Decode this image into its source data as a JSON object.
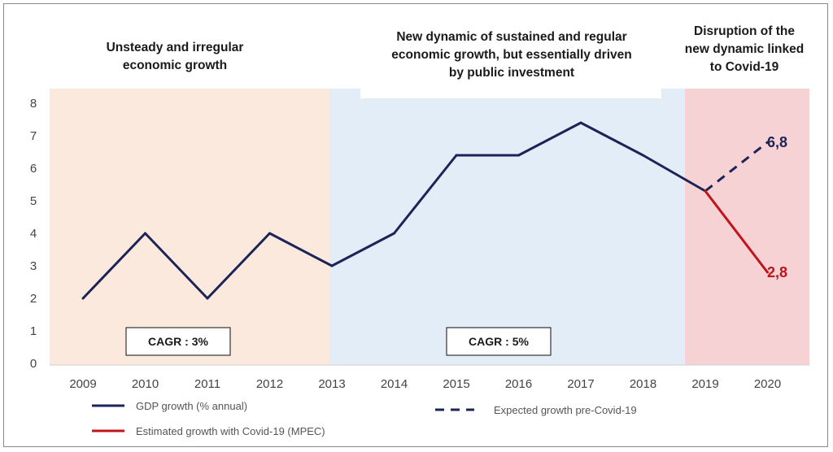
{
  "chart_data": {
    "type": "line",
    "x": [
      "2009",
      "2010",
      "2011",
      "2012",
      "2013",
      "2014",
      "2015",
      "2016",
      "2017",
      "2018",
      "2019",
      "2020"
    ],
    "ylim": [
      0,
      8
    ],
    "yticks": [
      "0",
      "1",
      "2",
      "3",
      "4",
      "5",
      "6",
      "7",
      "8"
    ],
    "series": [
      {
        "name": "GDP growth (% annual)",
        "color": "#1c2457",
        "style": "solid",
        "points": [
          {
            "x": "2009",
            "y": 2
          },
          {
            "x": "2010",
            "y": 4
          },
          {
            "x": "2011",
            "y": 2
          },
          {
            "x": "2012",
            "y": 4
          },
          {
            "x": "2013",
            "y": 3
          },
          {
            "x": "2014",
            "y": 4
          },
          {
            "x": "2015",
            "y": 6.4
          },
          {
            "x": "2016",
            "y": 6.4
          },
          {
            "x": "2017",
            "y": 7.4
          },
          {
            "x": "2018",
            "y": 6.4
          },
          {
            "x": "2019",
            "y": 5.3
          }
        ]
      },
      {
        "name": "Expected growth pre-Covid-19",
        "color": "#1c2457",
        "style": "dashed",
        "points": [
          {
            "x": "2019",
            "y": 5.3
          },
          {
            "x": "2020",
            "y": 6.8
          }
        ]
      },
      {
        "name": "Estimated growth with Covid-19 (MPEC)",
        "color": "#c0141c",
        "style": "solid",
        "points": [
          {
            "x": "2019",
            "y": 5.3
          },
          {
            "x": "2020",
            "y": 2.8
          }
        ]
      }
    ],
    "periods": [
      {
        "from": "2009",
        "to": "2013",
        "color": "#fbe9de",
        "annotation": [
          "Unsteady and irregular",
          "economic growth"
        ],
        "cagr": "CAGR : 3%"
      },
      {
        "from": "2013",
        "to": "2019",
        "color": "#e2edf8",
        "annotation": [
          "New dynamic of sustained and regular",
          "economic growth, but essentially driven",
          "by public investment"
        ],
        "cagr": "CAGR : 5%"
      },
      {
        "from": "2019",
        "to": "2020",
        "color": "#f6d2d5",
        "annotation": [
          "Disruption of the",
          "new dynamic linked",
          "to Covid-19"
        ],
        "cagr": ""
      }
    ],
    "end_labels": {
      "expected": "6,8",
      "estimated": "2,8"
    },
    "legend": {
      "gdp": "GDP growth (% annual)",
      "expected": "Expected growth pre-Covid-19",
      "estimated": "Estimated growth with Covid-19 (MPEC)"
    },
    "colors": {
      "navy": "#1c2457",
      "red": "#c0141c"
    }
  }
}
